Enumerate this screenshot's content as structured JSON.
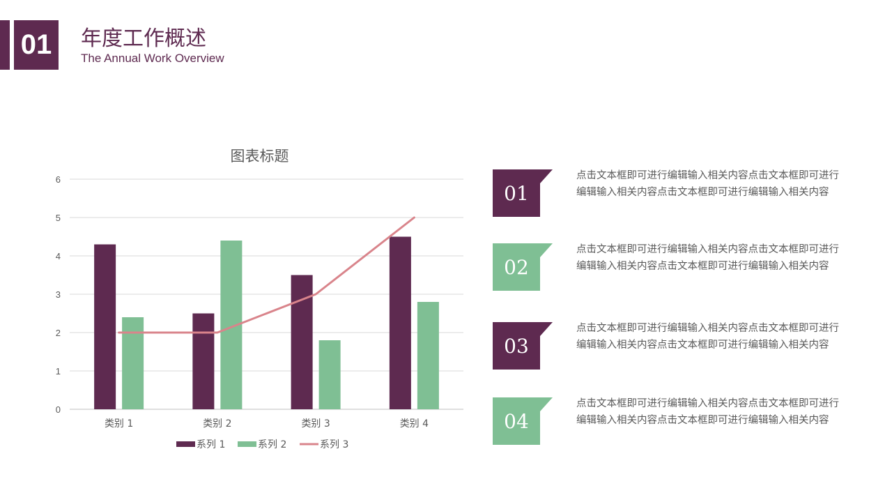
{
  "header": {
    "number": "01",
    "title_cn": "年度工作概述",
    "title_en": "The Annual Work Overview"
  },
  "colors": {
    "purple": "#5e2a50",
    "green": "#7fbf94",
    "pink": "#d9848b"
  },
  "chart_data": {
    "type": "bar",
    "title": "图表标题",
    "categories": [
      "类别 1",
      "类别 2",
      "类别 3",
      "类别 4"
    ],
    "series": [
      {
        "name": "系列 1",
        "type": "bar",
        "values": [
          4.3,
          2.5,
          3.5,
          4.5
        ]
      },
      {
        "name": "系列 2",
        "type": "bar",
        "values": [
          2.4,
          4.4,
          1.8,
          2.8
        ]
      },
      {
        "name": "系列 3",
        "type": "line",
        "values": [
          2,
          2,
          3,
          5
        ]
      }
    ],
    "ylim": [
      0,
      6
    ],
    "yticks": [
      "0",
      "1",
      "2",
      "3",
      "4",
      "5",
      "6"
    ],
    "grid": true,
    "legend": "bottom"
  },
  "items": [
    {
      "num": "01",
      "text": "点击文本框即可进行编辑输入相关内容点击文本框即可进行编辑输入相关内容点击文本框即可进行编辑输入相关内容"
    },
    {
      "num": "02",
      "text": "点击文本框即可进行编辑输入相关内容点击文本框即可进行编辑输入相关内容点击文本框即可进行编辑输入相关内容"
    },
    {
      "num": "03",
      "text": "点击文本框即可进行编辑输入相关内容点击文本框即可进行编辑输入相关内容点击文本框即可进行编辑输入相关内容"
    },
    {
      "num": "04",
      "text": "点击文本框即可进行编辑输入相关内容点击文本框即可进行编辑输入相关内容点击文本框即可进行编辑输入相关内容"
    }
  ]
}
